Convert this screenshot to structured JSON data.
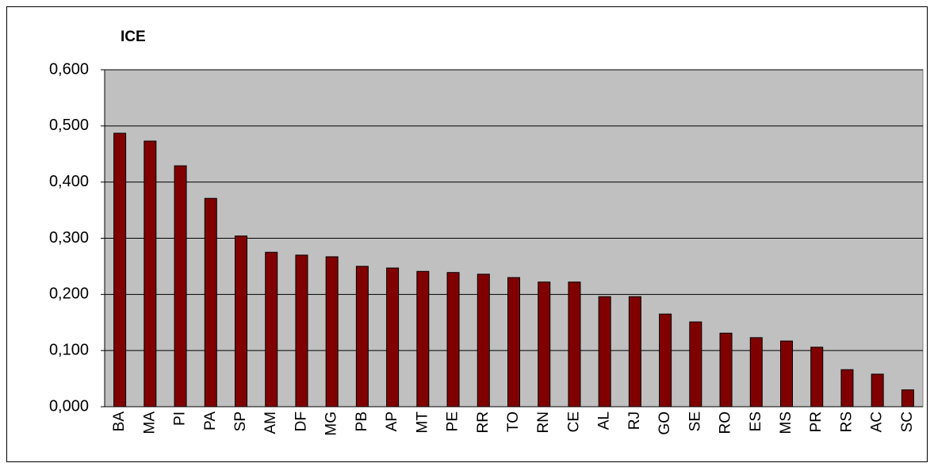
{
  "chart_data": {
    "type": "bar",
    "title": "ICE",
    "categories": [
      "BA",
      "MA",
      "PI",
      "PA",
      "SP",
      "AM",
      "DF",
      "MG",
      "PB",
      "AP",
      "MT",
      "PE",
      "RR",
      "TO",
      "RN",
      "CE",
      "AL",
      "RJ",
      "GO",
      "SE",
      "RO",
      "ES",
      "MS",
      "PR",
      "RS",
      "AC",
      "SC"
    ],
    "values": [
      0.487,
      0.473,
      0.429,
      0.371,
      0.304,
      0.275,
      0.27,
      0.267,
      0.25,
      0.247,
      0.241,
      0.239,
      0.236,
      0.23,
      0.222,
      0.222,
      0.196,
      0.196,
      0.165,
      0.151,
      0.131,
      0.123,
      0.117,
      0.106,
      0.066,
      0.058,
      0.03
    ],
    "color": "#800000",
    "ylim": [
      0,
      0.6
    ],
    "yticks": [
      {
        "value": 0,
        "label": "0,000"
      },
      {
        "value": 0.1,
        "label": "0,100"
      },
      {
        "value": 0.2,
        "label": "0,200"
      },
      {
        "value": 0.3,
        "label": "0,300"
      },
      {
        "value": 0.4,
        "label": "0,400"
      },
      {
        "value": 0.5,
        "label": "0,500"
      },
      {
        "value": 0.6,
        "label": "0,600"
      }
    ],
    "grid": true
  }
}
